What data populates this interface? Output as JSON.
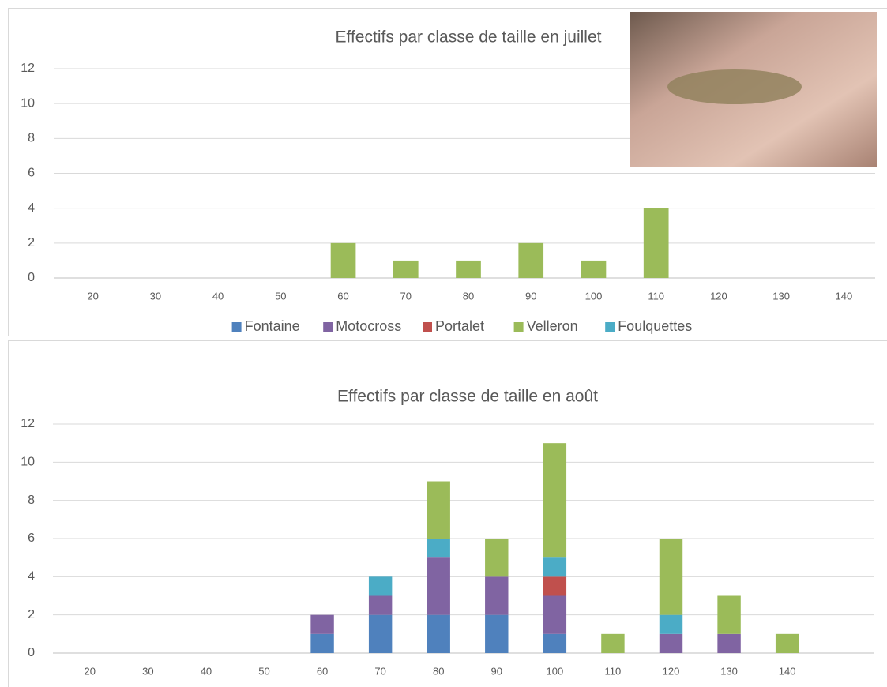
{
  "chart_data": [
    {
      "type": "bar",
      "stacked": true,
      "title": "Effectifs par classe de taille en juillet",
      "categories": [
        "20",
        "30",
        "40",
        "50",
        "60",
        "70",
        "80",
        "90",
        "100",
        "110",
        "120",
        "130",
        "140"
      ],
      "series": [
        {
          "name": "Fontaine",
          "color": "#4f81bd",
          "values": [
            0,
            0,
            0,
            0,
            0,
            0,
            0,
            0,
            0,
            0,
            0,
            0,
            0
          ]
        },
        {
          "name": "Motocross",
          "color": "#8064a2",
          "values": [
            0,
            0,
            0,
            0,
            0,
            0,
            0,
            0,
            0,
            0,
            0,
            0,
            0
          ]
        },
        {
          "name": "Portalet",
          "color": "#c0504d",
          "values": [
            0,
            0,
            0,
            0,
            0,
            0,
            0,
            0,
            0,
            0,
            0,
            0,
            0
          ]
        },
        {
          "name": "Velleron",
          "color": "#9bbb59",
          "values": [
            0,
            0,
            0,
            0,
            2,
            1,
            1,
            2,
            1,
            4,
            0,
            0,
            0
          ]
        },
        {
          "name": "Foulquettes",
          "color": "#4bacc6",
          "values": [
            0,
            0,
            0,
            0,
            0,
            0,
            0,
            0,
            0,
            0,
            0,
            0,
            0
          ]
        }
      ],
      "ylim": [
        0,
        12
      ],
      "yticks": [
        0,
        2,
        4,
        6,
        8,
        10,
        12
      ],
      "grid": true,
      "legend": "bottom"
    },
    {
      "type": "bar",
      "stacked": true,
      "title": "Effectifs par classe de taille en août",
      "categories": [
        "20",
        "30",
        "40",
        "50",
        "60",
        "70",
        "80",
        "90",
        "100",
        "110",
        "120",
        "130",
        "140",
        null
      ],
      "series": [
        {
          "name": "Fontaine",
          "color": "#4f81bd",
          "values": [
            0,
            0,
            0,
            0,
            1,
            2,
            2,
            2,
            1,
            0,
            0,
            0,
            0,
            0
          ]
        },
        {
          "name": "Motocross",
          "color": "#8064a2",
          "values": [
            0,
            0,
            0,
            0,
            1,
            1,
            3,
            2,
            2,
            0,
            1,
            1,
            0,
            0
          ]
        },
        {
          "name": "Portalet",
          "color": "#c0504d",
          "values": [
            0,
            0,
            0,
            0,
            0,
            0,
            0,
            0,
            1,
            0,
            0,
            0,
            0,
            0
          ]
        },
        {
          "name": "Foulquettes",
          "color": "#4bacc6",
          "values": [
            0,
            0,
            0,
            0,
            0,
            1,
            1,
            0,
            1,
            0,
            1,
            0,
            0,
            0
          ]
        },
        {
          "name": "Velleron",
          "color": "#9bbb59",
          "values": [
            0,
            0,
            0,
            0,
            0,
            0,
            3,
            2,
            6,
            1,
            4,
            2,
            1,
            0
          ]
        }
      ],
      "ylim": [
        0,
        12
      ],
      "yticks": [
        0,
        2,
        4,
        6,
        8,
        10,
        12
      ],
      "grid": true
    }
  ]
}
